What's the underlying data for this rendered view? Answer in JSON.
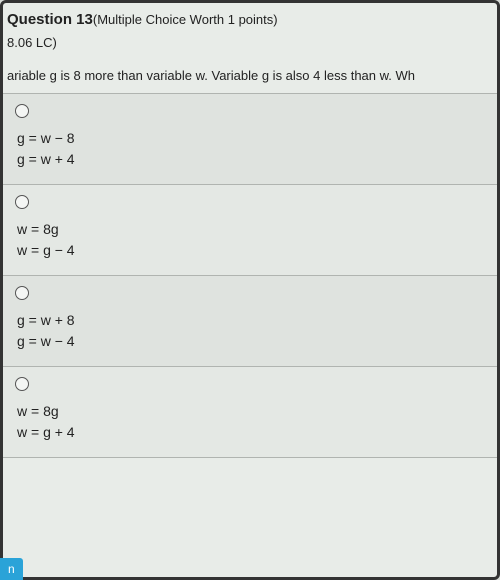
{
  "header": {
    "question_label": "Question 13",
    "worth": "(Multiple Choice Worth 1 points)",
    "code": "8.06 LC)"
  },
  "prompt": "ariable g is 8 more than variable w. Variable g is also 4 less than w. Wh",
  "options": [
    {
      "line1": "g = w − 8",
      "line2": "g = w + 4"
    },
    {
      "line1": "w = 8g",
      "line2": "w = g − 4"
    },
    {
      "line1": "g = w + 8",
      "line2": "g = w − 4"
    },
    {
      "line1": "w = 8g",
      "line2": "w = g + 4"
    }
  ],
  "button_fragment": "n",
  "colors": {
    "page_bg": "#d8dcd8",
    "panel_bg": "#e8ece8",
    "option_bg_a": "#e4e8e4",
    "option_bg_b": "#dfe3df",
    "border": "#b0b4b0",
    "text": "#222222",
    "radio_border": "#555555",
    "button_bg": "#2aa3d8",
    "button_text": "#ffffff"
  }
}
